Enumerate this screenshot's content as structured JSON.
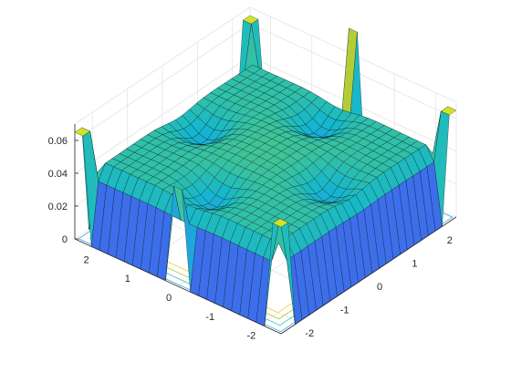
{
  "chart_data": {
    "type": "surface3d",
    "title": "",
    "xlabel": "",
    "ylabel": "",
    "zlabel": "",
    "xlim": [
      -2.5,
      2.5
    ],
    "ylim": [
      -2.5,
      2.5
    ],
    "zlim": [
      0,
      0.07
    ],
    "grid": true,
    "colormap": "parula",
    "contour_base": true,
    "xticks": [
      {
        "value": -2,
        "label": "-2"
      },
      {
        "value": -1,
        "label": "-1"
      },
      {
        "value": 0,
        "label": "0"
      },
      {
        "value": 1,
        "label": "1"
      },
      {
        "value": 2,
        "label": "2"
      }
    ],
    "yticks": [
      {
        "value": -2,
        "label": "-2"
      },
      {
        "value": -1,
        "label": "-1"
      },
      {
        "value": 0,
        "label": "0"
      },
      {
        "value": 1,
        "label": "1"
      },
      {
        "value": 2,
        "label": "2"
      }
    ],
    "zticks": [
      {
        "value": 0,
        "label": "0"
      },
      {
        "value": 0.02,
        "label": "0.02"
      },
      {
        "value": 0.04,
        "label": "0.04"
      },
      {
        "value": 0.06,
        "label": "0.06"
      }
    ],
    "surface": {
      "x_min": -2.5,
      "x_max": 2.5,
      "y_min": -2.5,
      "y_max": 2.5,
      "steps": 25,
      "plateau": 0.045,
      "edge_band": 0.35,
      "corner_peak": 0.065,
      "wells": [
        {
          "x": 1.5,
          "y": 0,
          "depth": 0.012
        },
        {
          "x": -1.5,
          "y": 0,
          "depth": 0.012
        },
        {
          "x": 0,
          "y": 1.5,
          "depth": 0.012
        },
        {
          "x": 0,
          "y": -1.5,
          "depth": 0.012
        }
      ],
      "spikes": [
        {
          "x": 2.5,
          "y": 0,
          "height": 0.085
        },
        {
          "x": -2.5,
          "y": 0,
          "height": 0.06
        }
      ]
    },
    "contour_colors": [
      "#3ea1e6",
      "#2ac0bf",
      "#9fcb3a",
      "#f5d22e"
    ]
  }
}
